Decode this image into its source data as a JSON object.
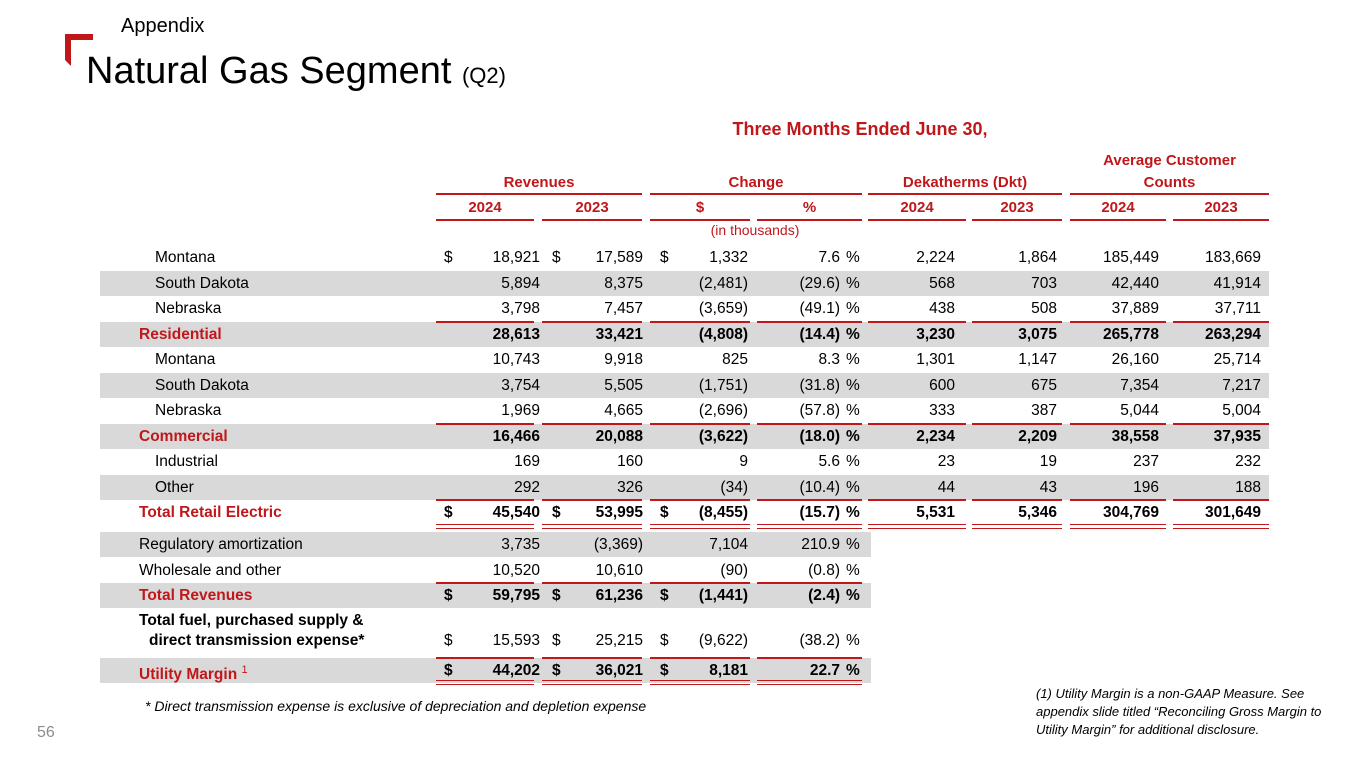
{
  "slide": {
    "kicker": "Appendix",
    "title": "Natural Gas Segment",
    "title_suffix": "(Q2)",
    "page_number": "56",
    "accent_color": "#c0171b"
  },
  "table": {
    "period": "Three Months Ended June 30,",
    "groups": {
      "revenues": "Revenues",
      "change": "Change",
      "dekatherms": "Dekatherms (Dkt)",
      "customers_line1": "Average Customer",
      "customers_line2": "Counts"
    },
    "subheaders": {
      "rev_2024": "2024",
      "rev_2023": "2023",
      "chg_dollar": "$",
      "chg_pct": "%",
      "dkt_2024": "2024",
      "dkt_2023": "2023",
      "cust_2024": "2024",
      "cust_2023": "2023"
    },
    "units": "(in thousands)",
    "rows": [
      {
        "label": "Montana",
        "r24": "18,921",
        "r23": "17,589",
        "chg": "1,332",
        "pct": "7.6",
        "pctsign": "%",
        "d24": "2,224",
        "d23": "1,864",
        "c24": "185,449",
        "c23": "183,669",
        "dol": "$"
      },
      {
        "label": "South Dakota",
        "r24": "5,894",
        "r23": "8,375",
        "chg": "(2,481)",
        "pct": "(29.6)",
        "pctsign": "%",
        "d24": "568",
        "d23": "703",
        "c24": "42,440",
        "c23": "41,914"
      },
      {
        "label": "Nebraska",
        "r24": "3,798",
        "r23": "7,457",
        "chg": "(3,659)",
        "pct": "(49.1)",
        "pctsign": "%",
        "d24": "438",
        "d23": "508",
        "c24": "37,889",
        "c23": "37,711"
      },
      {
        "label": "Residential",
        "r24": "28,613",
        "r23": "33,421",
        "chg": "(4,808)",
        "pct": "(14.4)",
        "pctsign": "%",
        "d24": "3,230",
        "d23": "3,075",
        "c24": "265,778",
        "c23": "263,294"
      },
      {
        "label": "Montana",
        "r24": "10,743",
        "r23": "9,918",
        "chg": "825",
        "pct": "8.3",
        "pctsign": "%",
        "d24": "1,301",
        "d23": "1,147",
        "c24": "26,160",
        "c23": "25,714"
      },
      {
        "label": "South Dakota",
        "r24": "3,754",
        "r23": "5,505",
        "chg": "(1,751)",
        "pct": "(31.8)",
        "pctsign": "%",
        "d24": "600",
        "d23": "675",
        "c24": "7,354",
        "c23": "7,217"
      },
      {
        "label": "Nebraska",
        "r24": "1,969",
        "r23": "4,665",
        "chg": "(2,696)",
        "pct": "(57.8)",
        "pctsign": "%",
        "d24": "333",
        "d23": "387",
        "c24": "5,044",
        "c23": "5,004"
      },
      {
        "label": "Commercial",
        "r24": "16,466",
        "r23": "20,088",
        "chg": "(3,622)",
        "pct": "(18.0)",
        "pctsign": "%",
        "d24": "2,234",
        "d23": "2,209",
        "c24": "38,558",
        "c23": "37,935"
      },
      {
        "label": "Industrial",
        "r24": "169",
        "r23": "160",
        "chg": "9",
        "pct": "5.6",
        "pctsign": "%",
        "d24": "23",
        "d23": "19",
        "c24": "237",
        "c23": "232"
      },
      {
        "label": "Other",
        "r24": "292",
        "r23": "326",
        "chg": "(34)",
        "pct": "(10.4)",
        "pctsign": "%",
        "d24": "44",
        "d23": "43",
        "c24": "196",
        "c23": "188"
      },
      {
        "label": "Total Retail Electric",
        "r24": "45,540",
        "r23": "53,995",
        "chg": "(8,455)",
        "pct": "(15.7)",
        "pctsign": "%",
        "d24": "5,531",
        "d23": "5,346",
        "c24": "304,769",
        "c23": "301,649",
        "dol": "$"
      },
      {
        "label": "Regulatory amortization",
        "r24": "3,735",
        "r23": "(3,369)",
        "chg": "7,104",
        "pct": "210.9",
        "pctsign": "%"
      },
      {
        "label": "Wholesale and other",
        "r24": "10,520",
        "r23": "10,610",
        "chg": "(90)",
        "pct": "(0.8)",
        "pctsign": "%"
      },
      {
        "label": "Total Revenues",
        "r24": "59,795",
        "r23": "61,236",
        "chg": "(1,441)",
        "pct": "(2.4)",
        "pctsign": "%",
        "dol": "$"
      },
      {
        "label_line1": "Total fuel, purchased supply &",
        "label_line2": "direct transmission expense*",
        "r24": "15,593",
        "r23": "25,215",
        "chg": "(9,622)",
        "pct": "(38.2)",
        "pctsign": "%",
        "dol": "$"
      },
      {
        "label": "Utility Margin",
        "label_sup": "1",
        "r24": "44,202",
        "r23": "36,021",
        "chg": "8,181",
        "pct": "22.7",
        "pctsign": "%",
        "dol": "$"
      }
    ]
  },
  "footnote": "* Direct transmission expense is exclusive of depreciation and depletion expense",
  "note": "(1) Utility Margin is a non-GAAP Measure. See appendix slide titled “Reconciling Gross Margin to Utility Margin” for additional disclosure."
}
